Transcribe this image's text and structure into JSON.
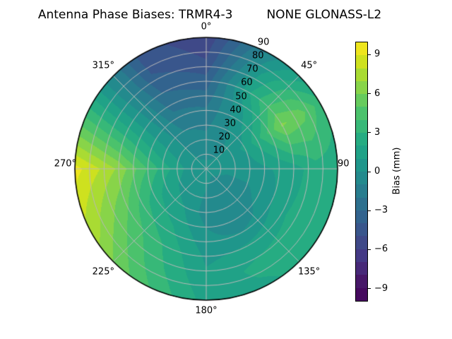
{
  "title": {
    "left": "Antenna Phase Biases: TRMR4-3",
    "right": "NONE GLONASS-L2"
  },
  "polar": {
    "angle_labels": [
      {
        "angle": 0,
        "text": "0°"
      },
      {
        "angle": 45,
        "text": "45°"
      },
      {
        "angle": 90,
        "text": "90"
      },
      {
        "angle": 135,
        "text": "135°"
      },
      {
        "angle": 180,
        "text": "180°"
      },
      {
        "angle": 225,
        "text": "225°"
      },
      {
        "angle": 270,
        "text": "270°"
      },
      {
        "angle": 315,
        "text": "315°"
      }
    ],
    "radial_labels": [
      {
        "r": 10,
        "text": "10"
      },
      {
        "r": 20,
        "text": "20"
      },
      {
        "r": 30,
        "text": "30"
      },
      {
        "r": 40,
        "text": "40"
      },
      {
        "r": 50,
        "text": "50"
      },
      {
        "r": 60,
        "text": "60"
      },
      {
        "r": 70,
        "text": "70"
      },
      {
        "r": 80,
        "text": "80"
      },
      {
        "r": 90,
        "text": "90"
      }
    ],
    "radial_label_angle_deg": 22.5
  },
  "colorbar": {
    "label": "Bias (mm)",
    "vmin": -10,
    "vmax": 10,
    "ticks": [
      {
        "value": 9,
        "label": "9"
      },
      {
        "value": 6,
        "label": "6"
      },
      {
        "value": 3,
        "label": "3"
      },
      {
        "value": 0,
        "label": "0"
      },
      {
        "value": -3,
        "label": "−3"
      },
      {
        "value": -6,
        "label": "−6"
      },
      {
        "value": -9,
        "label": "−9"
      }
    ],
    "band_colors": [
      "#450a5e",
      "#471868",
      "#472978",
      "#443985",
      "#3f4988",
      "#39568c",
      "#32638e",
      "#2d708e",
      "#287d8e",
      "#238a8d",
      "#1f968b",
      "#20a287",
      "#26ac82",
      "#37b878",
      "#4bc26c",
      "#66cb5d",
      "#88d449",
      "#a9db33",
      "#cee11f",
      "#eee51e"
    ]
  },
  "colors": {
    "grid": "#b9b9b9",
    "outline": "#000000",
    "background": "#ffffff"
  },
  "chart_data": {
    "type": "heatmap",
    "projection": "polar",
    "title": "Antenna Phase Biases: TRMR4-3        NONE GLONASS-L2",
    "colorbar_label": "Bias (mm)",
    "units": "mm",
    "theta_zero": "north",
    "theta_direction": "clockwise",
    "radial_range": [
      0,
      90
    ],
    "radial_ticks": [
      10,
      20,
      30,
      40,
      50,
      60,
      70,
      80,
      90
    ],
    "angular_ticks_deg": [
      0,
      45,
      90,
      135,
      180,
      225,
      270,
      315
    ],
    "levels": [
      -10,
      -9,
      -8,
      -7,
      -6,
      -5,
      -4,
      -3,
      -2,
      -1,
      0,
      1,
      2,
      3,
      4,
      5,
      6,
      7,
      8,
      9,
      10
    ],
    "azimuth_deg": [
      0,
      30,
      60,
      90,
      120,
      150,
      180,
      210,
      240,
      270,
      300,
      330,
      360
    ],
    "zenith_deg": [
      0,
      15,
      30,
      45,
      60,
      75,
      90
    ],
    "bias_mm": [
      [
        0.3,
        -0.5,
        -1.2,
        -2.2,
        -3.6,
        -5.0,
        -5.8
      ],
      [
        0.3,
        -0.3,
        0.0,
        0.6,
        2.0,
        1.0,
        -0.5
      ],
      [
        0.3,
        0.3,
        1.2,
        3.4,
        6.2,
        5.4,
        3.4
      ],
      [
        0.3,
        0.2,
        0.5,
        1.0,
        1.5,
        2.6,
        2.4
      ],
      [
        0.3,
        -0.2,
        -0.3,
        0.5,
        1.8,
        2.8,
        3.0
      ],
      [
        0.3,
        -0.4,
        -1.0,
        -0.5,
        1.2,
        2.4,
        1.8
      ],
      [
        0.3,
        0.0,
        -0.5,
        0.2,
        0.8,
        1.2,
        1.6
      ],
      [
        0.3,
        0.4,
        1.0,
        2.0,
        3.0,
        3.6,
        4.4
      ],
      [
        0.3,
        0.6,
        1.5,
        3.0,
        4.8,
        6.2,
        7.6
      ],
      [
        0.3,
        1.0,
        2.6,
        4.6,
        6.8,
        8.2,
        9.4
      ],
      [
        0.3,
        0.4,
        0.8,
        1.2,
        1.6,
        2.0,
        2.4
      ],
      [
        0.3,
        -0.3,
        -1.0,
        -2.0,
        -3.0,
        -4.0,
        -4.5
      ],
      [
        0.3,
        -0.5,
        -1.2,
        -2.2,
        -3.6,
        -5.0,
        -5.8
      ]
    ]
  }
}
